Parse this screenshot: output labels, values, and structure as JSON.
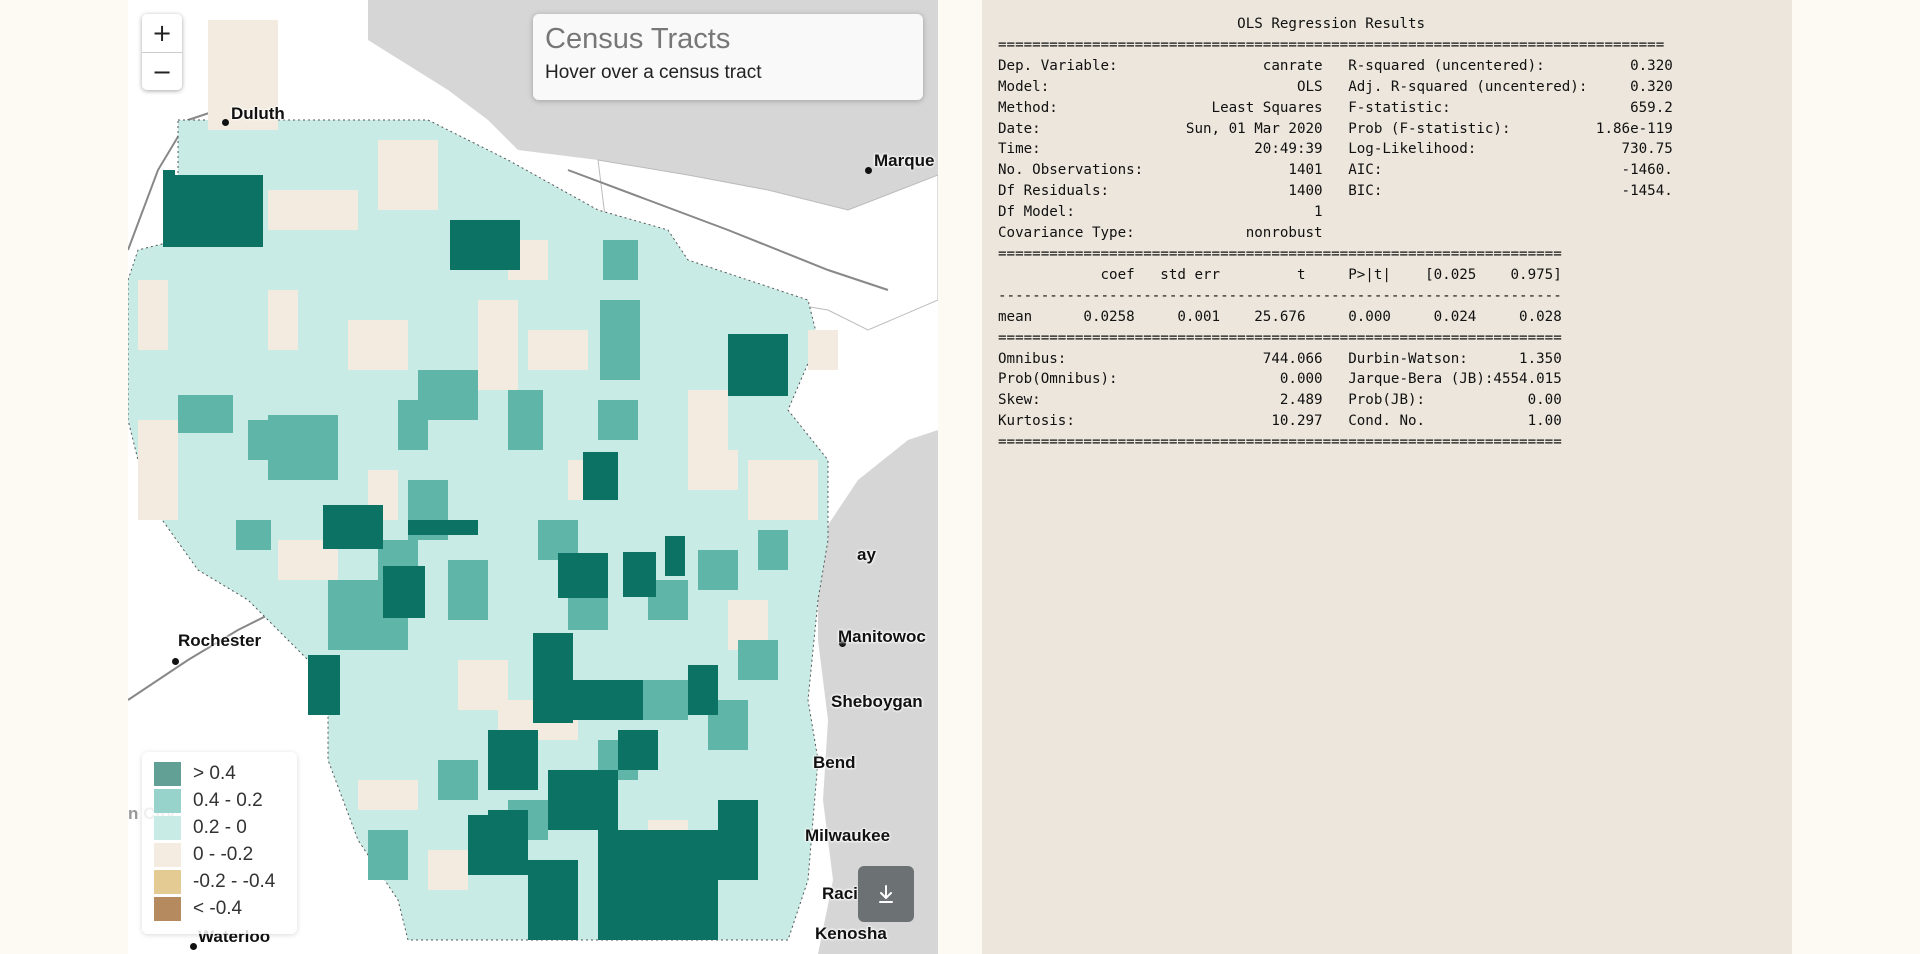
{
  "map": {
    "zoom_in_label": "+",
    "zoom_out_label": "−",
    "info_title": "Census Tracts",
    "info_text": "Hover over a census tract",
    "legend": [
      {
        "label": "> 0.4",
        "color": "#62a096"
      },
      {
        "label": "0.4 - 0.2",
        "color": "#98d3cb"
      },
      {
        "label": "0.2 - 0",
        "color": "#c8ebe5"
      },
      {
        "label": "0 - -0.2",
        "color": "#f4ece0"
      },
      {
        "label": "-0.2 - -0.4",
        "color": "#e4cb94"
      },
      {
        "label": "< -0.4",
        "color": "#b48a5e"
      }
    ],
    "download_icon": "download-icon",
    "cities": [
      {
        "name": "Duluth",
        "partial": "Duluth"
      },
      {
        "name": "Marquette",
        "partial": "Marque"
      },
      {
        "name": "Green Bay",
        "partial": "ay"
      },
      {
        "name": "Rochester",
        "partial": "Rochester"
      },
      {
        "name": "Manitowoc",
        "partial": "Manitowoc"
      },
      {
        "name": "Sheboygan",
        "partial": "Sheboygan"
      },
      {
        "name": "West Bend",
        "partial": "Bend"
      },
      {
        "name": "Milwaukee",
        "partial": "Milwaukee"
      },
      {
        "name": "Racine",
        "partial": "Raci"
      },
      {
        "name": "Kenosha",
        "partial": "Kenosha"
      },
      {
        "name": "Waterloo",
        "partial": "Waterloo"
      },
      {
        "name": "Mason City",
        "partial": "n City"
      }
    ],
    "tract_colors": {
      "dark": "#0b7264",
      "mid": "#5fb5a7",
      "light": "#c8ebe5",
      "neutral": "#f3ebdf",
      "outside_land": "#ffffff",
      "water": "#d9d9d9"
    }
  },
  "results": {
    "title": "OLS Regression Results",
    "header_left": [
      [
        "Dep. Variable:",
        "canrate"
      ],
      [
        "Model:",
        "OLS"
      ],
      [
        "Method:",
        "Least Squares"
      ],
      [
        "Date:",
        "Sun, 01 Mar 2020"
      ],
      [
        "Time:",
        "20:49:39"
      ],
      [
        "No. Observations:",
        "1401"
      ],
      [
        "Df Residuals:",
        "1400"
      ],
      [
        "Df Model:",
        "1"
      ],
      [
        "Covariance Type:",
        "nonrobust"
      ]
    ],
    "header_right": [
      [
        "R-squared (uncentered):",
        "0.320"
      ],
      [
        "Adj. R-squared (uncentered):",
        "0.320"
      ],
      [
        "F-statistic:",
        "659.2"
      ],
      [
        "Prob (F-statistic):",
        "1.86e-119"
      ],
      [
        "Log-Likelihood:",
        "730.75"
      ],
      [
        "AIC:",
        "-1460."
      ],
      [
        "BIC:",
        "-1454."
      ]
    ],
    "coef_columns": [
      "coef",
      "std err",
      "t",
      "P>|t|",
      "[0.025",
      "0.975]"
    ],
    "coef_rows": [
      {
        "name": "mean",
        "values": [
          "0.0258",
          "0.001",
          "25.676",
          "0.000",
          "0.024",
          "0.028"
        ]
      }
    ],
    "diag_left": [
      [
        "Omnibus:",
        "744.066"
      ],
      [
        "Prob(Omnibus):",
        "0.000"
      ],
      [
        "Skew:",
        "2.489"
      ],
      [
        "Kurtosis:",
        "10.297"
      ]
    ],
    "diag_right": [
      [
        "Durbin-Watson:",
        "1.350"
      ],
      [
        "Jarque-Bera (JB):",
        "4554.015"
      ],
      [
        "Prob(JB):",
        "0.00"
      ],
      [
        "Cond. No.",
        "1.00"
      ]
    ]
  }
}
